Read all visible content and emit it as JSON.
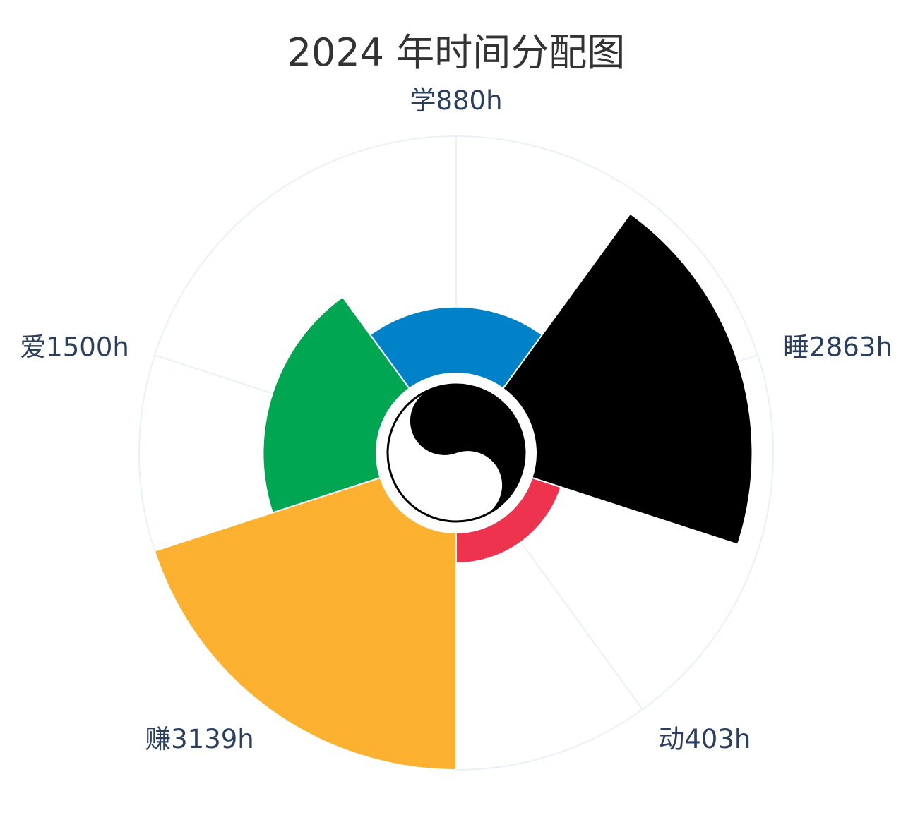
{
  "chart_data": {
    "type": "barpolar",
    "title": "2024 年时间分配图",
    "unit": "h",
    "categories": [
      "学",
      "睡",
      "动",
      "赚",
      "爱"
    ],
    "values": [
      880,
      2863,
      403,
      3139,
      1500
    ],
    "tick_labels": [
      "学880h",
      "睡2863h",
      "动403h",
      "赚3139h",
      "爱1500h"
    ],
    "colors": [
      "#0081C8",
      "#000000",
      "#EE334E",
      "#FCB131",
      "#00A651"
    ],
    "radial_range": [
      0,
      3139
    ],
    "angular_direction": "clockwise",
    "rotation": "top",
    "grid": true,
    "center_icon": "yin-yang-icon"
  }
}
